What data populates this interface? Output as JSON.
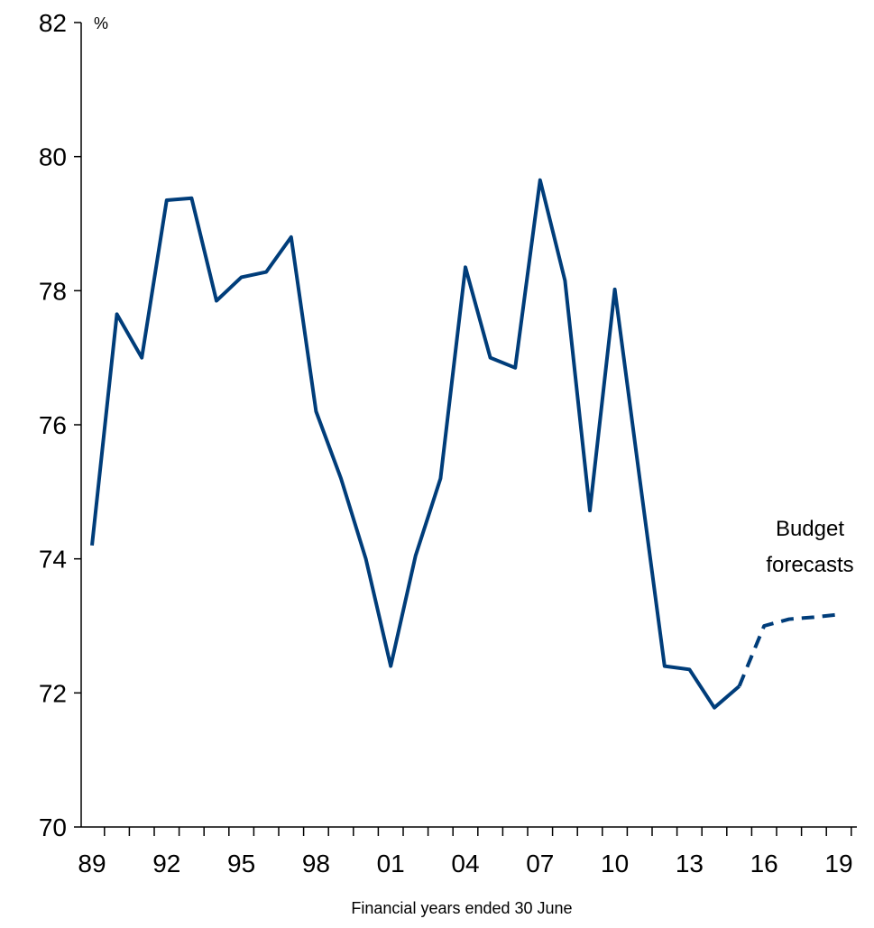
{
  "chart_data": {
    "type": "line",
    "y_unit": "%",
    "x_label": "Financial years ended 30 June",
    "annotation": [
      "Budget",
      "forecasts"
    ],
    "categories": [
      "89",
      null,
      null,
      "92",
      null,
      null,
      "95",
      null,
      null,
      "98",
      null,
      null,
      "01",
      null,
      null,
      "04",
      null,
      null,
      "07",
      null,
      null,
      "10",
      null,
      null,
      "13",
      null,
      null,
      "16",
      null,
      null,
      "19"
    ],
    "series": [
      {
        "color": "#003d7a",
        "style": "solid",
        "values": [
          74.2,
          77.65,
          77.0,
          79.35,
          79.38,
          77.85,
          78.2,
          78.28,
          78.8,
          76.2,
          75.2,
          74.0,
          72.4,
          74.05,
          75.2,
          78.35,
          77.0,
          76.85,
          79.65,
          78.15,
          74.72,
          78.02,
          75.2,
          72.4,
          72.35,
          71.78,
          72.1,
          null,
          null,
          null,
          null
        ]
      },
      {
        "color": "#003d7a",
        "style": "dashed",
        "values": [
          null,
          null,
          null,
          null,
          null,
          null,
          null,
          null,
          null,
          null,
          null,
          null,
          null,
          null,
          null,
          null,
          null,
          null,
          null,
          null,
          null,
          null,
          null,
          null,
          null,
          null,
          72.1,
          73.0,
          73.1,
          73.13,
          73.17
        ]
      }
    ],
    "ylim": [
      70,
      82
    ],
    "yticks": [
      70,
      72,
      74,
      76,
      78,
      80,
      82
    ]
  }
}
